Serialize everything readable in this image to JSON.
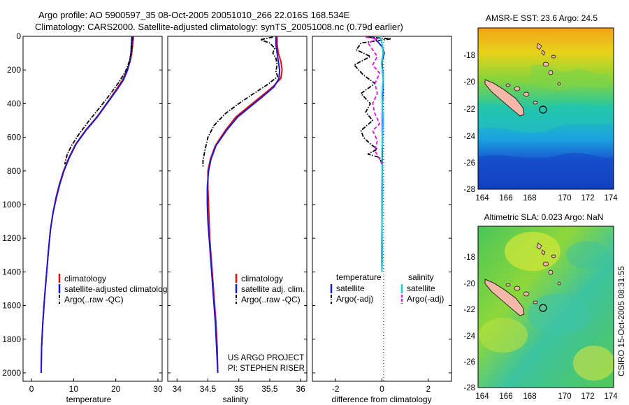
{
  "title": {
    "line1": "Argo profile: AO 5900597_35 08-Oct-2005 20051010_266 22.016S 168.534E",
    "line2": "Climatology: CARS2000. Satellite-adjusted climatology: synTS_20051008.nc (0.79d earlier)"
  },
  "colors": {
    "climatology": "#e01010",
    "satellite": "#1818d8",
    "argo": "#000000",
    "sal_sat": "#10d0e0",
    "sal_argo": "#e010e0"
  },
  "chart_data": [
    {
      "type": "line",
      "name": "temperature-panel",
      "xlabel": "temperature",
      "ylabel": "",
      "xlim": [
        -2,
        31
      ],
      "ylim": [
        2050,
        0
      ],
      "xticks": [
        0,
        10,
        20,
        30
      ],
      "yticks": [
        0,
        200,
        400,
        600,
        800,
        1000,
        1200,
        1400,
        1600,
        1800,
        2000
      ],
      "legend": {
        "position": "lower-right",
        "entries": [
          "climatology",
          "satellite-adjusted climatology",
          "Argo(..raw -QC)"
        ]
      },
      "series": [
        {
          "name": "climatology",
          "color": "#e01010",
          "style": "solid",
          "points": [
            [
              24.2,
              0
            ],
            [
              24.0,
              50
            ],
            [
              23.8,
              100
            ],
            [
              23.4,
              150
            ],
            [
              22.7,
              200
            ],
            [
              21.6,
              260
            ],
            [
              20.0,
              320
            ],
            [
              17.8,
              400
            ],
            [
              15.5,
              480
            ],
            [
              12.8,
              560
            ],
            [
              10.5,
              640
            ],
            [
              8.9,
              720
            ],
            [
              7.6,
              800
            ],
            [
              6.6,
              880
            ],
            [
              5.8,
              960
            ],
            [
              5.1,
              1050
            ],
            [
              4.5,
              1150
            ],
            [
              4.0,
              1280
            ],
            [
              3.6,
              1400
            ],
            [
              3.1,
              1550
            ],
            [
              2.7,
              1700
            ],
            [
              2.4,
              1850
            ],
            [
              2.3,
              2000
            ]
          ]
        },
        {
          "name": "satellite-adjusted climatology",
          "color": "#1818d8",
          "style": "solid",
          "points": [
            [
              23.8,
              0
            ],
            [
              23.7,
              50
            ],
            [
              23.6,
              100
            ],
            [
              23.3,
              150
            ],
            [
              22.8,
              200
            ],
            [
              21.8,
              260
            ],
            [
              20.2,
              320
            ],
            [
              17.9,
              400
            ],
            [
              15.6,
              480
            ],
            [
              12.9,
              560
            ],
            [
              10.6,
              640
            ],
            [
              9.0,
              720
            ],
            [
              7.7,
              800
            ],
            [
              6.7,
              880
            ],
            [
              5.9,
              960
            ],
            [
              5.1,
              1050
            ],
            [
              4.5,
              1150
            ],
            [
              4.0,
              1280
            ],
            [
              3.6,
              1400
            ],
            [
              3.1,
              1550
            ],
            [
              2.7,
              1700
            ],
            [
              2.4,
              1850
            ],
            [
              2.3,
              2000
            ]
          ]
        },
        {
          "name": "Argo(..raw -QC)",
          "color": "#000000",
          "style": "dashdot",
          "points": [
            [
              24.0,
              5
            ],
            [
              23.9,
              40
            ],
            [
              23.7,
              90
            ],
            [
              23.2,
              150
            ],
            [
              22.3,
              210
            ],
            [
              20.8,
              270
            ],
            [
              18.8,
              340
            ],
            [
              16.3,
              420
            ],
            [
              13.7,
              500
            ],
            [
              11.3,
              580
            ],
            [
              9.5,
              650
            ],
            [
              8.5,
              700
            ],
            [
              7.9,
              760
            ]
          ]
        }
      ]
    },
    {
      "type": "line",
      "name": "salinity-panel",
      "xlabel": "salinity",
      "xlim": [
        33.85,
        36.1
      ],
      "ylim": [
        2050,
        0
      ],
      "xticks": [
        34,
        34.5,
        35,
        35.5,
        36
      ],
      "legend": {
        "position": "lower-right",
        "entries": [
          "climatology",
          "satellite adj. clim.",
          "Argo(..raw -QC)"
        ]
      },
      "annotation": [
        "US ARGO PROJECT",
        "PI: STEPHEN RISER"
      ],
      "series": [
        {
          "name": "climatology",
          "color": "#e01010",
          "style": "solid",
          "points": [
            [
              35.62,
              0
            ],
            [
              35.62,
              50
            ],
            [
              35.64,
              100
            ],
            [
              35.68,
              150
            ],
            [
              35.7,
              200
            ],
            [
              35.68,
              250
            ],
            [
              35.55,
              300
            ],
            [
              35.35,
              360
            ],
            [
              35.15,
              420
            ],
            [
              34.95,
              480
            ],
            [
              34.78,
              560
            ],
            [
              34.62,
              650
            ],
            [
              34.54,
              730
            ],
            [
              34.5,
              800
            ],
            [
              34.5,
              900
            ],
            [
              34.51,
              1000
            ],
            [
              34.52,
              1100
            ],
            [
              34.53,
              1200
            ],
            [
              34.55,
              1300
            ],
            [
              34.57,
              1400
            ],
            [
              34.6,
              1550
            ],
            [
              34.63,
              1700
            ],
            [
              34.65,
              1850
            ],
            [
              34.66,
              2000
            ]
          ]
        },
        {
          "name": "satellite adj. clim.",
          "color": "#1818d8",
          "style": "solid",
          "points": [
            [
              35.6,
              0
            ],
            [
              35.6,
              50
            ],
            [
              35.62,
              100
            ],
            [
              35.64,
              150
            ],
            [
              35.66,
              200
            ],
            [
              35.65,
              250
            ],
            [
              35.57,
              300
            ],
            [
              35.38,
              360
            ],
            [
              35.18,
              420
            ],
            [
              34.98,
              480
            ],
            [
              34.8,
              560
            ],
            [
              34.63,
              650
            ],
            [
              34.55,
              730
            ],
            [
              34.51,
              800
            ],
            [
              34.49,
              900
            ],
            [
              34.49,
              1000
            ],
            [
              34.5,
              1100
            ],
            [
              34.52,
              1200
            ],
            [
              34.54,
              1300
            ],
            [
              34.56,
              1400
            ],
            [
              34.59,
              1550
            ],
            [
              34.62,
              1700
            ],
            [
              34.64,
              1850
            ],
            [
              34.66,
              2000
            ]
          ]
        },
        {
          "name": "Argo(..raw -QC)",
          "color": "#000000",
          "style": "dashdot",
          "points": [
            [
              35.55,
              5
            ],
            [
              35.35,
              20
            ],
            [
              35.5,
              40
            ],
            [
              35.58,
              70
            ],
            [
              35.55,
              100
            ],
            [
              35.6,
              130
            ],
            [
              35.62,
              170
            ],
            [
              35.6,
              210
            ],
            [
              35.63,
              240
            ],
            [
              35.45,
              290
            ],
            [
              35.2,
              350
            ],
            [
              35.0,
              400
            ],
            [
              34.78,
              460
            ],
            [
              34.6,
              530
            ],
            [
              34.5,
              600
            ],
            [
              34.45,
              680
            ],
            [
              34.42,
              740
            ],
            [
              34.42,
              780
            ]
          ]
        }
      ]
    },
    {
      "type": "line",
      "name": "difference-panel",
      "xlabel": "difference from climatology",
      "xlim": [
        -3,
        3
      ],
      "ylim": [
        2050,
        0
      ],
      "xticks": [
        -2,
        0,
        2
      ],
      "legend": {
        "position": "lower-center",
        "temperature_header": "temperature",
        "salinity_header": "salinity",
        "entries": [
          "satellite",
          "Argo(-adj)",
          "satellite",
          "Argo(-adj)"
        ]
      },
      "series": [
        {
          "name": "temperature satellite",
          "color": "#1818d8",
          "style": "solid",
          "points": [
            [
              -0.4,
              0
            ],
            [
              -0.2,
              30
            ],
            [
              0.0,
              60
            ],
            [
              0.1,
              100
            ],
            [
              0.0,
              150
            ],
            [
              0.05,
              250
            ],
            [
              0.02,
              400
            ],
            [
              0.02,
              600
            ],
            [
              0.01,
              900
            ],
            [
              0.0,
              1200
            ],
            [
              0.0,
              1400
            ]
          ]
        },
        {
          "name": "temperature Argo(-adj)",
          "color": "#000000",
          "style": "dashdot",
          "points": [
            [
              -0.6,
              5
            ],
            [
              0.4,
              15
            ],
            [
              -0.9,
              40
            ],
            [
              -1.1,
              80
            ],
            [
              -0.5,
              120
            ],
            [
              -1.2,
              170
            ],
            [
              -0.8,
              230
            ],
            [
              -0.3,
              280
            ],
            [
              -0.9,
              340
            ],
            [
              -0.5,
              400
            ],
            [
              -0.7,
              450
            ],
            [
              -0.4,
              500
            ],
            [
              -0.9,
              560
            ],
            [
              -0.8,
              600
            ],
            [
              -0.5,
              640
            ],
            [
              -0.2,
              670
            ],
            [
              -0.6,
              700
            ],
            [
              -0.1,
              720
            ],
            [
              0.0,
              760
            ]
          ]
        },
        {
          "name": "salinity satellite",
          "color": "#10d0e0",
          "style": "solid",
          "points": [
            [
              -0.1,
              0
            ],
            [
              0.0,
              40
            ],
            [
              0.05,
              100
            ],
            [
              -0.02,
              160
            ],
            [
              0.05,
              250
            ],
            [
              0.0,
              350
            ],
            [
              0.05,
              500
            ],
            [
              0.0,
              700
            ],
            [
              0.03,
              900
            ],
            [
              0.0,
              1100
            ],
            [
              0.02,
              1300
            ],
            [
              0.0,
              1400
            ]
          ]
        },
        {
          "name": "salinity Argo(-adj)",
          "color": "#e010e0",
          "style": "dashed",
          "points": [
            [
              -0.7,
              5
            ],
            [
              -0.2,
              15
            ],
            [
              -0.6,
              40
            ],
            [
              -0.4,
              80
            ],
            [
              -0.2,
              120
            ],
            [
              -0.4,
              170
            ],
            [
              -0.1,
              220
            ],
            [
              -0.3,
              280
            ],
            [
              -0.2,
              340
            ],
            [
              -0.4,
              400
            ],
            [
              -0.3,
              460
            ],
            [
              -0.1,
              520
            ],
            [
              -0.4,
              560
            ],
            [
              -0.2,
              620
            ],
            [
              -0.3,
              680
            ],
            [
              -0.1,
              730
            ],
            [
              0.0,
              760
            ]
          ]
        }
      ]
    }
  ],
  "maps": {
    "sst": {
      "title": "AMSR-E SST: 23.6 Argo: 24.5",
      "xticks": [
        "164",
        "166",
        "168",
        "170",
        "172",
        "174"
      ],
      "yticks": [
        "-18",
        "-20",
        "-22",
        "-24",
        "-26",
        "-28"
      ]
    },
    "sla": {
      "title": "Altimetric SLA: 0.023 Argo: NaN",
      "xticks": [
        "164",
        "166",
        "168",
        "170",
        "172",
        "174"
      ],
      "yticks": [
        "-18",
        "-20",
        "-22",
        "-24",
        "-26",
        "-28"
      ]
    }
  },
  "side_label": "CSIRO 15-Oct-2005 08:31:55"
}
